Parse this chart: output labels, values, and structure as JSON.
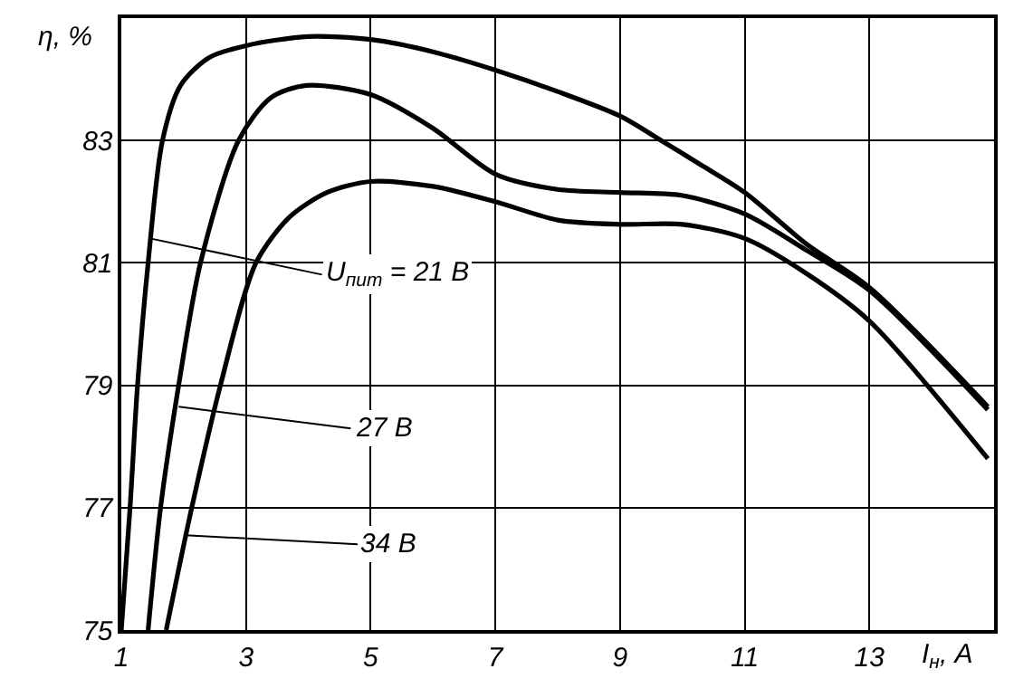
{
  "chart_data": {
    "type": "line",
    "xlabel": "I$_{н}$, А",
    "ylabel": "η, %",
    "xlim": [
      1,
      15
    ],
    "xticks": [
      1,
      3,
      5,
      7,
      9,
      11,
      13
    ],
    "ylim": [
      75,
      85
    ],
    "yticks": [
      75,
      77,
      79,
      81,
      83
    ],
    "grid": true,
    "marker": "none",
    "line_style": "solid",
    "series": [
      {
        "color": "#000000",
        "x": [
          1.0,
          1.14,
          1.26,
          1.43,
          1.66,
          1.95,
          2.4,
          3,
          4,
          5,
          6,
          7,
          8,
          9,
          9.66,
          10.3,
          11,
          12,
          13,
          14.9
        ],
        "values": [
          75,
          77,
          79,
          81,
          83,
          83.9,
          84.35,
          84.55,
          84.7,
          84.65,
          84.45,
          84.15,
          83.8,
          83.4,
          83.0,
          82.6,
          82.15,
          81.3,
          80.6,
          78.65
        ]
      },
      {
        "color": "#000000",
        "x": [
          1.43,
          1.63,
          1.92,
          2.27,
          2.88,
          3.4,
          3.97,
          5,
          6,
          7,
          8,
          9,
          10,
          11,
          12,
          13,
          14.9
        ],
        "values": [
          75,
          77,
          79,
          81,
          83,
          83.7,
          83.9,
          83.75,
          83.2,
          82.45,
          82.2,
          82.15,
          82.1,
          81.8,
          81.2,
          80.55,
          78.6
        ]
      },
      {
        "color": "#000000",
        "x": [
          1.72,
          2.13,
          2.59,
          3.16,
          3.7,
          4.3,
          5,
          6,
          7,
          8,
          9,
          10,
          11,
          11.97,
          13,
          14.9
        ],
        "values": [
          75,
          77,
          79,
          81,
          81.75,
          82.15,
          82.33,
          82.25,
          82.0,
          81.7,
          81.63,
          81.63,
          81.4,
          80.84,
          80.05,
          77.8
        ]
      }
    ],
    "annotations": [
      {
        "text": "U$_{пит}$ = 21 В",
        "x": 1.46,
        "y": 81.4
      },
      {
        "text": "27 В",
        "x": 1.92,
        "y": 78.65
      },
      {
        "text": "34 В",
        "x": 2.03,
        "y": 76.55
      }
    ]
  }
}
